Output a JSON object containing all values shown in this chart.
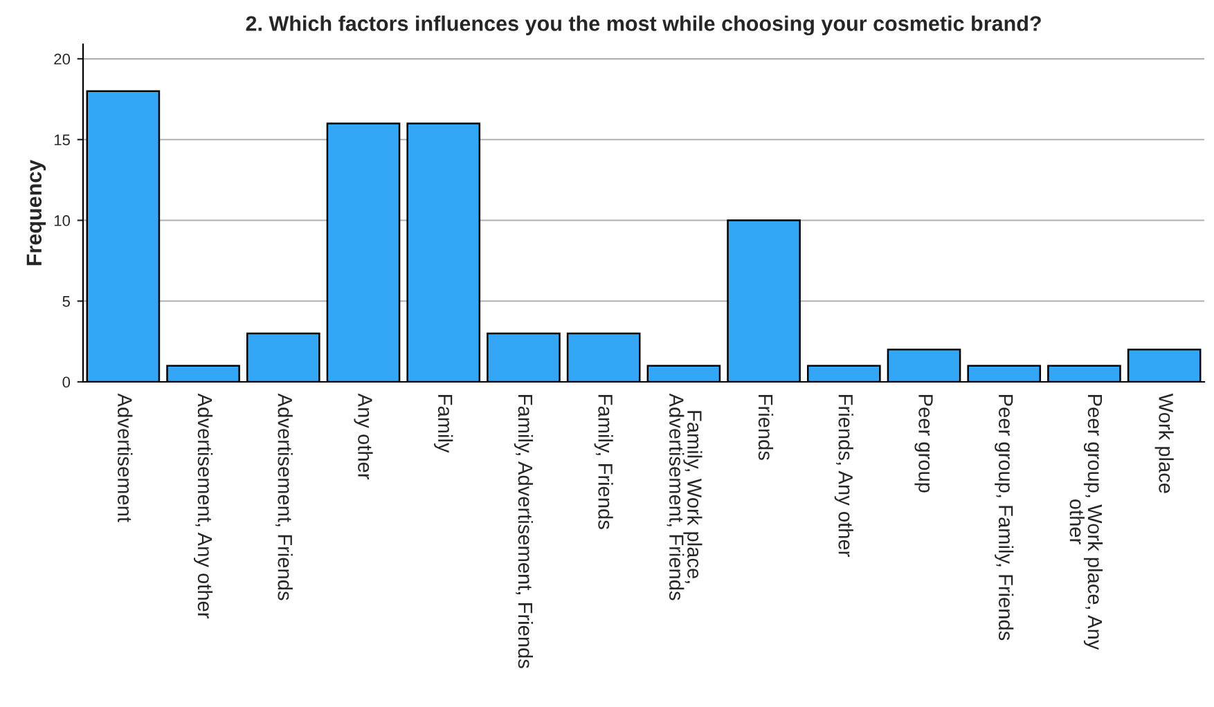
{
  "chart_data": {
    "type": "bar",
    "title": "2. Which factors influences you the most while choosing your cosmetic brand?",
    "ylabel": "Frequency",
    "categories": [
      "Advertisement",
      "Advertisement, Any other",
      "Advertisement, Friends",
      "Any other",
      "Family",
      "Family, Advertisement, Friends",
      "Family, Friends",
      "Family, Work place,\nAdvertisement, Friends",
      "Friends",
      "Friends, Any other",
      "Peer group",
      "Peer group, Family, Friends",
      "Peer group, Work place, Any\nother",
      "Work place"
    ],
    "values": [
      18,
      1,
      3,
      16,
      16,
      3,
      3,
      1,
      10,
      1,
      2,
      1,
      1,
      2
    ],
    "color": "#33a7f5",
    "ylim": [
      0,
      20.9
    ],
    "yticks": [
      0,
      5,
      10,
      15,
      20
    ],
    "grid": "y"
  }
}
